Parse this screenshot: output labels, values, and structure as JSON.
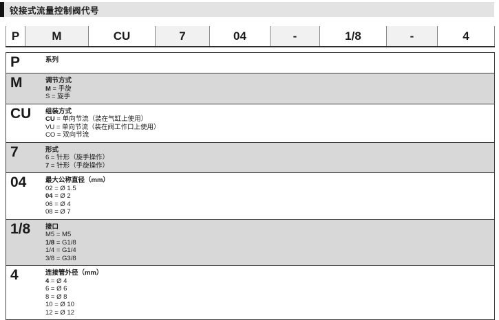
{
  "header": {
    "title": "铰接式流量控制阀代号"
  },
  "code_bar": {
    "segments": [
      "P",
      "M",
      "CU",
      "7",
      "04",
      "-",
      "1/8",
      "-",
      "4"
    ]
  },
  "rows": [
    {
      "code": "P",
      "heading": "系列",
      "options": []
    },
    {
      "code": "M",
      "heading": "调节方式",
      "options": [
        {
          "key": "M",
          "desc": "手旋",
          "selected": true
        },
        {
          "key": "S",
          "desc": "旋手",
          "selected": false
        }
      ]
    },
    {
      "code": "CU",
      "heading": "组装方式",
      "options": [
        {
          "key": "CU",
          "desc": "单向节流（装在气缸上使用）",
          "selected": true
        },
        {
          "key": "VU",
          "desc": "单向节流（装在阀工作口上使用）",
          "selected": false
        },
        {
          "key": "CO",
          "desc": "双向节流",
          "selected": false
        }
      ]
    },
    {
      "code": "7",
      "heading": "形式",
      "options": [
        {
          "key": "6",
          "desc": "针形（旋手操作）",
          "selected": false
        },
        {
          "key": "7",
          "desc": "针形（手旋操作）",
          "selected": true
        }
      ]
    },
    {
      "code": "04",
      "heading": "最大公称直径（mm）",
      "options": [
        {
          "key": "02",
          "desc": "Ø 1.5",
          "selected": false
        },
        {
          "key": "04",
          "desc": "Ø 2",
          "selected": true
        },
        {
          "key": "06",
          "desc": "Ø 4",
          "selected": false
        },
        {
          "key": "08",
          "desc": "Ø 7",
          "selected": false
        }
      ]
    },
    {
      "code": "1/8",
      "heading": "接口",
      "options": [
        {
          "key": "M5",
          "desc": "M5",
          "selected": false
        },
        {
          "key": "1/8",
          "desc": "G1/8",
          "selected": true
        },
        {
          "key": "1/4",
          "desc": "G1/4",
          "selected": false
        },
        {
          "key": "3/8",
          "desc": "G3/8",
          "selected": false
        }
      ]
    },
    {
      "code": "4",
      "heading": "连接管外径（mm）",
      "options": [
        {
          "key": "4",
          "desc": "Ø 4",
          "selected": true
        },
        {
          "key": "6",
          "desc": "Ø 6",
          "selected": false
        },
        {
          "key": "8",
          "desc": "Ø 8",
          "selected": false
        },
        {
          "key": "10",
          "desc": "Ø 10",
          "selected": false
        },
        {
          "key": "12",
          "desc": "Ø 12",
          "selected": false
        }
      ]
    }
  ],
  "option_separator": " = ",
  "colors": {
    "title_bar_bg": "#e3e3e3",
    "title_marker": "#111111",
    "segment_shade": "#f1f1f1",
    "row_shade": "#d8d8d8",
    "border_dark": "#3d3d3d",
    "text": "#1a1a1a"
  }
}
